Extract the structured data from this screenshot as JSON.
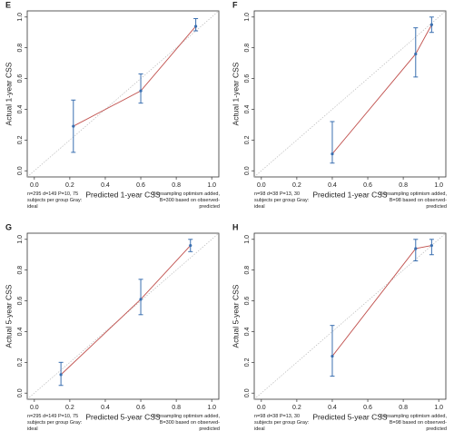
{
  "chart_data": [
    {
      "type": "scatter",
      "label": "E",
      "xlabel": "Predicted 1-year CSS",
      "ylabel": "Actual 1-year CSS",
      "note_left": "n=295 d=149 P=10, 75 subjects per group Gray: ideal",
      "note_right": "X-resampling optimism added, B=300 based on observed-predicted",
      "x": [
        0.22,
        0.6,
        0.91
      ],
      "values": [
        0.29,
        0.52,
        0.94
      ],
      "lower": [
        0.12,
        0.44,
        0.91
      ],
      "upper": [
        0.46,
        0.63,
        0.99
      ],
      "color": "#3a6fb0",
      "line_color": "#c0504d",
      "xlim": [
        -0.04,
        1.04
      ],
      "ylim": [
        -0.04,
        1.04
      ],
      "xticks": [
        {
          "value": 0,
          "label": "0.0"
        },
        {
          "value": 0.2,
          "label": "0.2"
        },
        {
          "value": 0.4,
          "label": "0.4"
        },
        {
          "value": 0.6,
          "label": "0.6"
        },
        {
          "value": 0.8,
          "label": "0.8"
        },
        {
          "value": 1,
          "label": "1.0"
        }
      ],
      "yticks": [
        {
          "value": 0,
          "label": "0.0"
        },
        {
          "value": 0.2,
          "label": "0.2"
        },
        {
          "value": 0.4,
          "label": "0.4"
        },
        {
          "value": 0.6,
          "label": "0.6"
        },
        {
          "value": 0.8,
          "label": "0.8"
        },
        {
          "value": 1,
          "label": "1.0"
        }
      ]
    },
    {
      "type": "scatter",
      "label": "F",
      "xlabel": "Predicted 1-year CSS",
      "ylabel": "Actual 1-year CSS",
      "note_left": "n=98 d=38 P=13, 30 subjects per group Gray: ideal",
      "note_right": "X-resampling optimism added, B=98 based on observed-predicted",
      "x": [
        0.4,
        0.87,
        0.96
      ],
      "values": [
        0.11,
        0.76,
        0.95
      ],
      "lower": [
        0.05,
        0.61,
        0.9
      ],
      "upper": [
        0.32,
        0.93,
        1.0
      ],
      "color": "#3a6fb0",
      "line_color": "#c0504d",
      "xlim": [
        -0.04,
        1.04
      ],
      "ylim": [
        -0.04,
        1.04
      ],
      "xticks": [
        {
          "value": 0,
          "label": "0.0"
        },
        {
          "value": 0.2,
          "label": "0.2"
        },
        {
          "value": 0.4,
          "label": "0.4"
        },
        {
          "value": 0.6,
          "label": "0.6"
        },
        {
          "value": 0.8,
          "label": "0.8"
        },
        {
          "value": 1,
          "label": "1.0"
        }
      ],
      "yticks": [
        {
          "value": 0,
          "label": "0.0"
        },
        {
          "value": 0.2,
          "label": "0.2"
        },
        {
          "value": 0.4,
          "label": "0.4"
        },
        {
          "value": 0.6,
          "label": "0.6"
        },
        {
          "value": 0.8,
          "label": "0.8"
        },
        {
          "value": 1,
          "label": "1.0"
        }
      ]
    },
    {
      "type": "scatter",
      "label": "G",
      "xlabel": "Predicted 5-year CSS",
      "ylabel": "Actual 5-year CSS",
      "note_left": "n=295 d=149 P=10, 75 subjects per group Gray: ideal",
      "note_right": "X-resampling optimism added, B=300 based on observed-predicted",
      "x": [
        0.15,
        0.6,
        0.88
      ],
      "values": [
        0.12,
        0.61,
        0.96
      ],
      "lower": [
        0.05,
        0.51,
        0.92
      ],
      "upper": [
        0.2,
        0.74,
        1.0
      ],
      "color": "#3a6fb0",
      "line_color": "#c0504d",
      "xlim": [
        -0.04,
        1.04
      ],
      "ylim": [
        -0.04,
        1.04
      ],
      "xticks": [
        {
          "value": 0,
          "label": "0.0"
        },
        {
          "value": 0.2,
          "label": "0.2"
        },
        {
          "value": 0.4,
          "label": "0.4"
        },
        {
          "value": 0.6,
          "label": "0.6"
        },
        {
          "value": 0.8,
          "label": "0.8"
        },
        {
          "value": 1,
          "label": "1.0"
        }
      ],
      "yticks": [
        {
          "value": 0,
          "label": "0.0"
        },
        {
          "value": 0.2,
          "label": "0.2"
        },
        {
          "value": 0.4,
          "label": "0.4"
        },
        {
          "value": 0.6,
          "label": "0.6"
        },
        {
          "value": 0.8,
          "label": "0.8"
        },
        {
          "value": 1,
          "label": "1.0"
        }
      ]
    },
    {
      "type": "scatter",
      "label": "H",
      "xlabel": "Predicted 5-year CSS",
      "ylabel": "Actual 5-year CSS",
      "note_left": "n=98 d=38 P=13, 30 subjects per group Gray: ideal",
      "note_right": "X-resampling optimism added, B=98 based on observed-predicted",
      "x": [
        0.4,
        0.87,
        0.96
      ],
      "values": [
        0.24,
        0.94,
        0.96
      ],
      "lower": [
        0.11,
        0.86,
        0.9
      ],
      "upper": [
        0.44,
        1.0,
        1.0
      ],
      "color": "#3a6fb0",
      "line_color": "#c0504d",
      "xlim": [
        -0.04,
        1.04
      ],
      "ylim": [
        -0.04,
        1.04
      ],
      "xticks": [
        {
          "value": 0,
          "label": "0.0"
        },
        {
          "value": 0.2,
          "label": "0.2"
        },
        {
          "value": 0.4,
          "label": "0.4"
        },
        {
          "value": 0.6,
          "label": "0.6"
        },
        {
          "value": 0.8,
          "label": "0.8"
        },
        {
          "value": 1,
          "label": "1.0"
        }
      ],
      "yticks": [
        {
          "value": 0,
          "label": "0.0"
        },
        {
          "value": 0.2,
          "label": "0.2"
        },
        {
          "value": 0.4,
          "label": "0.4"
        },
        {
          "value": 0.6,
          "label": "0.6"
        },
        {
          "value": 0.8,
          "label": "0.8"
        },
        {
          "value": 1,
          "label": "1.0"
        }
      ]
    }
  ]
}
